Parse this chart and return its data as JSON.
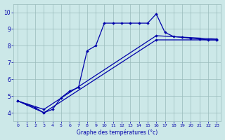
{
  "xlabel": "Graphe des températures (°c)",
  "background_color": "#cce8e8",
  "grid_color": "#99bbbb",
  "line_color": "#0000aa",
  "ylim": [
    3.5,
    10.5
  ],
  "xlim": [
    -0.5,
    23.5
  ],
  "yticks": [
    4,
    5,
    6,
    7,
    8,
    9,
    10
  ],
  "xticks": [
    0,
    1,
    2,
    3,
    4,
    5,
    6,
    7,
    8,
    9,
    10,
    11,
    12,
    13,
    14,
    15,
    16,
    17,
    18,
    19,
    20,
    21,
    22,
    23
  ],
  "line1_x": [
    0,
    1,
    2,
    3,
    4,
    5,
    6,
    7,
    8,
    9,
    10,
    11,
    12,
    13,
    14,
    15,
    16,
    17,
    18,
    19,
    20,
    21,
    22,
    23
  ],
  "line1_y": [
    4.7,
    4.5,
    4.3,
    4.0,
    4.2,
    4.9,
    5.3,
    5.5,
    7.7,
    8.0,
    9.35,
    9.35,
    9.35,
    9.35,
    9.35,
    9.35,
    9.9,
    8.8,
    8.55,
    8.5,
    8.45,
    8.4,
    8.35,
    8.35
  ],
  "line2_x": [
    0,
    3,
    16,
    23
  ],
  "line2_y": [
    4.7,
    4.0,
    8.35,
    8.35
  ],
  "line3_x": [
    0,
    3,
    16,
    23
  ],
  "line3_y": [
    4.7,
    4.2,
    8.6,
    8.4
  ]
}
